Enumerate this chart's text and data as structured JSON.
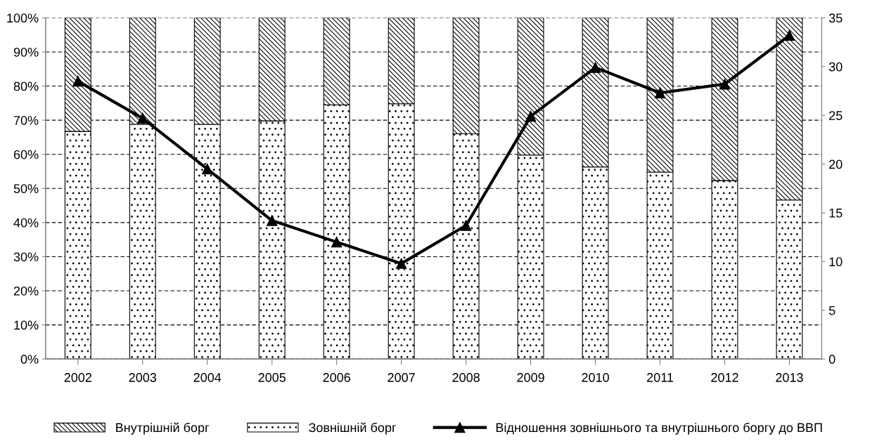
{
  "chart_data": {
    "type": "bar",
    "stacked": true,
    "categories": [
      "2002",
      "2003",
      "2004",
      "2005",
      "2006",
      "2007",
      "2008",
      "2009",
      "2010",
      "2011",
      "2012",
      "2013"
    ],
    "series": [
      {
        "name": "Зовнішній борг",
        "color": "#000000",
        "values": [
          66.7,
          68.8,
          68.8,
          69.8,
          74.5,
          74.8,
          66.0,
          59.8,
          56.3,
          54.8,
          52.3,
          46.6
        ]
      },
      {
        "name": "Внутрішній борг",
        "color": "#000000",
        "values": [
          33.3,
          31.2,
          31.2,
          30.2,
          25.5,
          25.2,
          34.0,
          40.2,
          43.7,
          45.2,
          47.7,
          53.4
        ]
      },
      {
        "name": "Відношення зовнішнього та внутрішнього боргу до ВВП",
        "type": "line",
        "axis": "y2",
        "color": "#000000",
        "marker": "triangle",
        "values": [
          28.5,
          24.7,
          19.5,
          14.2,
          12.0,
          9.8,
          13.7,
          24.9,
          29.9,
          27.3,
          28.2,
          33.2
        ]
      }
    ],
    "ylim": [
      0,
      100
    ],
    "yticks": [
      {
        "value": 0,
        "label": "0%"
      },
      {
        "value": 10,
        "label": "10%"
      },
      {
        "value": 20,
        "label": "20%"
      },
      {
        "value": 30,
        "label": "30%"
      },
      {
        "value": 40,
        "label": "40%"
      },
      {
        "value": 50,
        "label": "50%"
      },
      {
        "value": 60,
        "label": "60%"
      },
      {
        "value": 70,
        "label": "70%"
      },
      {
        "value": 80,
        "label": "80%"
      },
      {
        "value": 90,
        "label": "90%"
      },
      {
        "value": 100,
        "label": "100%"
      }
    ],
    "y2lim": [
      0,
      35
    ],
    "y2ticks": [
      0,
      5,
      10,
      15,
      20,
      25,
      30,
      35
    ],
    "grid": "y",
    "legend": "bottom"
  }
}
